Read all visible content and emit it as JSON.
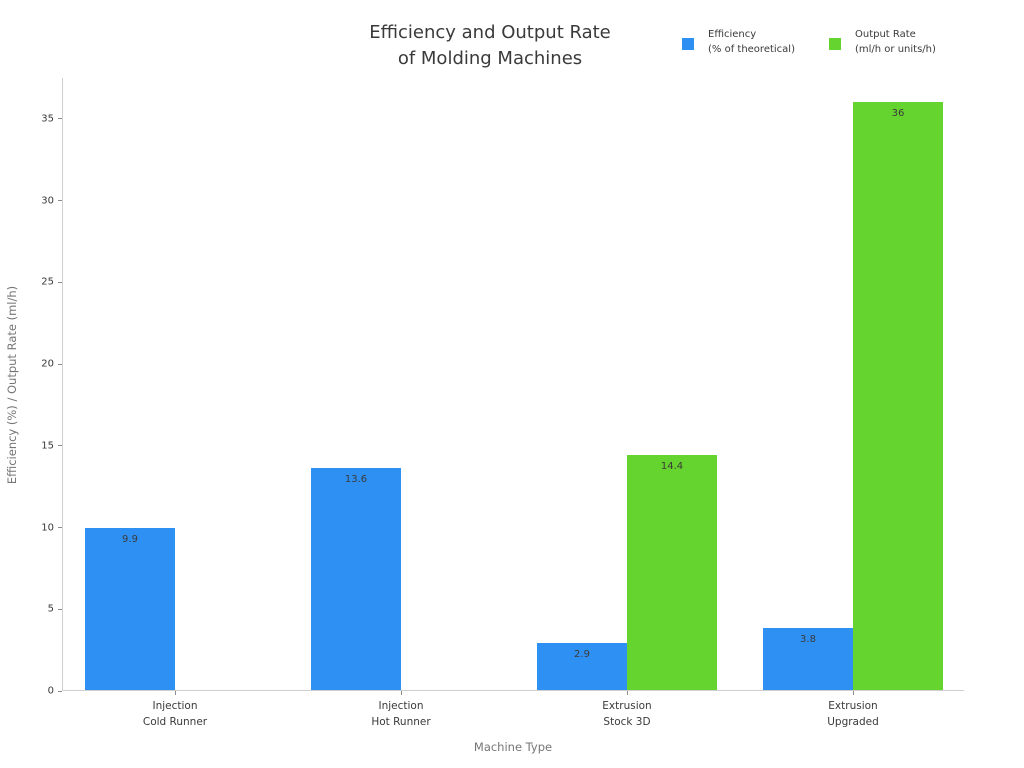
{
  "title": {
    "line1": "Efficiency and Output Rate",
    "line2": "of Molding Machines"
  },
  "legend": [
    {
      "label": "Efficiency\n(% of theoretical)",
      "color": "#2e90f2"
    },
    {
      "label": "Output Rate\n(ml/h or units/h)",
      "color": "#66d42e"
    }
  ],
  "chart_data": {
    "type": "bar",
    "title": "Efficiency and Output Rate of Molding Machines",
    "categories": [
      "Injection\nCold Runner",
      "Injection\nHot Runner",
      "Extrusion\nStock 3D",
      "Extrusion\nUpgraded"
    ],
    "series": [
      {
        "name": "Efficiency (% of theoretical)",
        "color": "#2e90f2",
        "values": [
          9.9,
          13.6,
          2.9,
          3.8
        ]
      },
      {
        "name": "Output Rate (ml/h or units/h)",
        "color": "#66d42e",
        "values": [
          0,
          0,
          14.4,
          36
        ]
      }
    ],
    "bar_value_labels": [
      "9.9",
      "13.6",
      "2.9",
      "3.8",
      "14.4",
      "36"
    ],
    "xlabel": "Machine Type",
    "ylabel": "Efficiency (%) / Output Rate (ml/h)",
    "ylim": [
      0,
      37.5
    ],
    "yticks": [
      0,
      5,
      10,
      15,
      20,
      25,
      30,
      35
    ],
    "grid": false,
    "legend_position": "top-right"
  }
}
